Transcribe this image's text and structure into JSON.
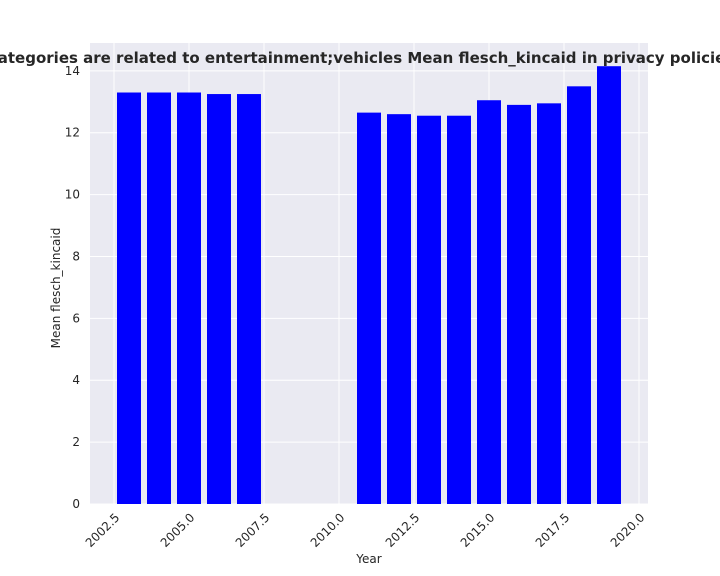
{
  "chart_data": {
    "type": "bar",
    "title": "When categories are related to entertainment;vehicles Mean flesch_kincaid in privacy policies by Year",
    "xlabel": "Year",
    "ylabel": "Mean flesch_kincaid",
    "x": [
      2003,
      2004,
      2005,
      2006,
      2007,
      2011,
      2012,
      2013,
      2014,
      2015,
      2016,
      2017,
      2018,
      2019
    ],
    "values": [
      13.3,
      13.3,
      13.3,
      13.25,
      13.25,
      12.65,
      12.6,
      12.55,
      12.55,
      13.05,
      12.9,
      12.95,
      13.5,
      14.15
    ],
    "xlim": [
      2001.7,
      2020.3
    ],
    "ylim": [
      0,
      14.9
    ],
    "xticks": [
      2002.5,
      2005.0,
      2007.5,
      2010.0,
      2012.5,
      2015.0,
      2017.5,
      2020.0
    ],
    "xtick_labels": [
      "2002.5",
      "2005.0",
      "2007.5",
      "2010.0",
      "2012.5",
      "2015.0",
      "2017.5",
      "2020.0"
    ],
    "yticks": [
      0,
      2,
      4,
      6,
      8,
      10,
      12,
      14
    ],
    "ytick_labels": [
      "0",
      "2",
      "4",
      "6",
      "8",
      "10",
      "12",
      "14"
    ],
    "bar_color": "#0000ff",
    "background_color": "#eaeaf2",
    "grid_color": "#ffffff",
    "grid": true
  }
}
